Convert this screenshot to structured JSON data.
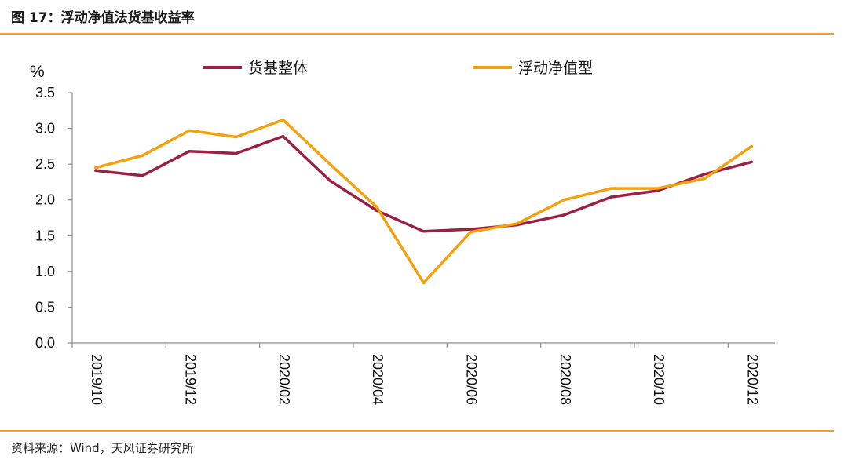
{
  "figure": {
    "title": "图 17：浮动净值法货基收益率",
    "source": "资料来源：Wind，天风证券研究所"
  },
  "colors": {
    "accent": "#f29a33",
    "series_1": "#9b2142",
    "series_2": "#f5a00d",
    "axis": "#8c8c8c"
  },
  "chart_data": {
    "type": "line",
    "title": "浮动净值法货基收益率",
    "ylabel": "%",
    "xlabel": "",
    "ylim": [
      0,
      3.5
    ],
    "yticks": [
      "0.0",
      "0.5",
      "1.0",
      "1.5",
      "2.0",
      "2.5",
      "3.0",
      "3.5"
    ],
    "ytick_values": [
      0,
      0.5,
      1.0,
      1.5,
      2.0,
      2.5,
      3.0,
      3.5
    ],
    "categories": [
      "2019/10",
      "2019/11",
      "2019/12",
      "2020/01",
      "2020/02",
      "2020/03",
      "2020/04",
      "2020/05",
      "2020/06",
      "2020/07",
      "2020/08",
      "2020/09",
      "2020/10",
      "2020/11",
      "2020/12"
    ],
    "xtick_labels": [
      "2019/10",
      "2019/12",
      "2020/02",
      "2020/04",
      "2020/06",
      "2020/08",
      "2020/10",
      "2020/12"
    ],
    "legend_position": "top",
    "series": [
      {
        "name": "货基整体",
        "values": [
          2.41,
          2.34,
          2.68,
          2.65,
          2.89,
          2.27,
          1.85,
          1.56,
          1.59,
          1.65,
          1.79,
          2.04,
          2.13,
          2.36,
          2.53
        ]
      },
      {
        "name": "浮动净值型",
        "values": [
          2.45,
          2.62,
          2.97,
          2.88,
          3.12,
          2.5,
          1.9,
          0.84,
          1.55,
          1.67,
          2.0,
          2.16,
          2.16,
          2.3,
          2.75
        ]
      }
    ]
  }
}
